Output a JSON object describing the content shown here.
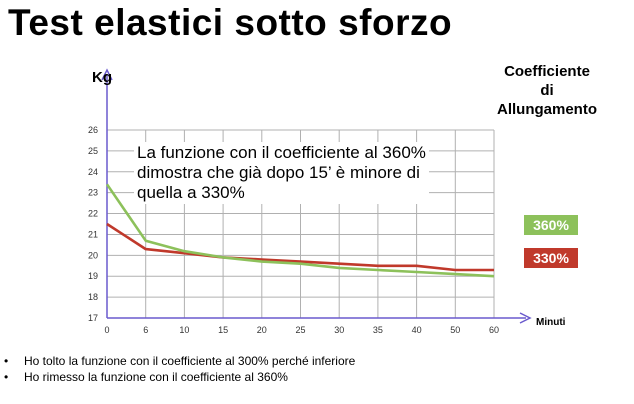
{
  "title": "Test elastici sotto sforzo",
  "legend_title": [
    "Coefficiente",
    "di",
    "Allungamento"
  ],
  "annotation": [
    "La funzione con il coefficiente al 360%",
    "dimostra che già dopo 15’ è minore di",
    "quella a 330%"
  ],
  "bullets": [
    "Ho tolto la funzione con il coefficiente al 300% perché inferiore",
    "Ho rimesso la funzione con il coefficiente al 360%"
  ],
  "colors": {
    "green": "#8dc15b",
    "red": "#c0392b",
    "axis": "#6a5acd",
    "grid": "#b0b0b0"
  },
  "chart_data": {
    "type": "line",
    "xlabel": "Minuti",
    "ylabel": "Kg",
    "xticks": [
      0,
      6,
      10,
      15,
      20,
      25,
      30,
      35,
      40,
      50,
      60
    ],
    "ylim": [
      17,
      26
    ],
    "yticks": [
      17,
      18,
      19,
      20,
      21,
      22,
      23,
      24,
      25,
      26
    ],
    "grid": true,
    "series": [
      {
        "name": "360%",
        "color": "#8dc15b",
        "points": [
          [
            0,
            23.4
          ],
          [
            6,
            20.7
          ],
          [
            10,
            20.2
          ],
          [
            15,
            19.9
          ],
          [
            20,
            19.7
          ],
          [
            25,
            19.6
          ],
          [
            30,
            19.4
          ],
          [
            35,
            19.3
          ],
          [
            40,
            19.2
          ],
          [
            50,
            19.1
          ],
          [
            60,
            19.0
          ]
        ]
      },
      {
        "name": "330%",
        "color": "#c0392b",
        "points": [
          [
            0,
            21.5
          ],
          [
            6,
            20.3
          ],
          [
            10,
            20.1
          ],
          [
            15,
            19.9
          ],
          [
            20,
            19.8
          ],
          [
            25,
            19.7
          ],
          [
            30,
            19.6
          ],
          [
            35,
            19.5
          ],
          [
            40,
            19.5
          ],
          [
            50,
            19.3
          ],
          [
            60,
            19.3
          ]
        ]
      }
    ]
  }
}
